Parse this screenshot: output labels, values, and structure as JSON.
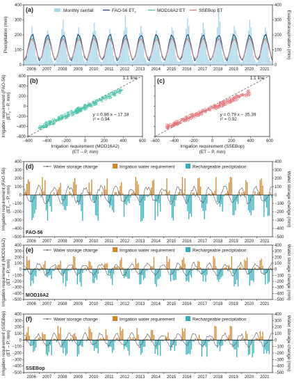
{
  "colors": {
    "rainfall": "#a9d7ea",
    "fao": "#26457a",
    "mod": "#48c4a8",
    "sse": "#e8757a",
    "storage": "#555555",
    "irrigation": "#d4862c",
    "recharge": "#33b0bf",
    "oneone": "#555555"
  },
  "years": [
    "2006",
    "2007",
    "2008",
    "2009",
    "2010",
    "2011",
    "2012",
    "2013",
    "2014",
    "2015",
    "2016",
    "2017",
    "2018",
    "2019",
    "2020",
    "2021"
  ],
  "chart_data": [
    {
      "panel": "(a)",
      "type": "bar+line",
      "ylabel_left": "Precipitation (mm)",
      "ylabel_right": "Evapotranspiration (mm)",
      "ylim_left": [
        0,
        400
      ],
      "ylim_right": [
        0,
        400
      ],
      "yticks": [
        "0",
        "100",
        "200",
        "300",
        "400"
      ],
      "legend": [
        "Monthly rainfall",
        "FAO-56 ET",
        "MOD16A2 ET",
        "SSEBop ET"
      ],
      "legend_sub": "c",
      "xrange": [
        2006,
        2022
      ],
      "seasonal_series": [
        {
          "name": "FAO-56 ET",
          "mean": 115,
          "amplitude": 85
        },
        {
          "name": "MOD16A2 ET",
          "mean": 108,
          "amplitude": 72
        },
        {
          "name": "SSEBop ET",
          "mean": 105,
          "amplitude": 68
        }
      ],
      "rainfall_monthly_mm": [
        20,
        35,
        60,
        90,
        150,
        180,
        260,
        210,
        140,
        60,
        30,
        15,
        25,
        30,
        80,
        110,
        160,
        200,
        230,
        190,
        120,
        50,
        25,
        10,
        15,
        40,
        70,
        120,
        170,
        240,
        300,
        220,
        150,
        70,
        30,
        20,
        20,
        30,
        60,
        100,
        180,
        210,
        250,
        200,
        130,
        60,
        30,
        15,
        25,
        35,
        80,
        110,
        160,
        220,
        280,
        230,
        140,
        70,
        35,
        20,
        15,
        30,
        70,
        100,
        150,
        190,
        240,
        210,
        120,
        60,
        25,
        15,
        20,
        40,
        60,
        120,
        170,
        230,
        330,
        250,
        150,
        60,
        30,
        20,
        25,
        35,
        75,
        110,
        160,
        210,
        260,
        220,
        130,
        50,
        30,
        15,
        15,
        30,
        65,
        105,
        150,
        190,
        230,
        200,
        120,
        55,
        25,
        15,
        20,
        40,
        70,
        120,
        170,
        200,
        250,
        230,
        140,
        60,
        30,
        20,
        25,
        35,
        80,
        110,
        160,
        240,
        310,
        260,
        150,
        60,
        30,
        15,
        15,
        30,
        70,
        100,
        150,
        210,
        280,
        240,
        130,
        70,
        35,
        20,
        20,
        35,
        60,
        110,
        190,
        250,
        370,
        290,
        160,
        70,
        30,
        20,
        25,
        40,
        70,
        120,
        160,
        210,
        260,
        230,
        140,
        60,
        30,
        15,
        15,
        30,
        65,
        100,
        170,
        230,
        300,
        250,
        140,
        60,
        30,
        15,
        20,
        35,
        70,
        110,
        160,
        200,
        250,
        220,
        130,
        50,
        25,
        15
      ]
    },
    {
      "panel": "(b)",
      "type": "scatter",
      "xlabel": "Irrigation requirement (MOD16A2)",
      "xlabel2": "(ET – P, mm)",
      "ylabel": "Irrigation requirement (FAO-56)",
      "ylabel2": "(ET",
      "ylabel2_sub": "c",
      "ylabel2_tail": " – P, mm)",
      "xlim": [
        -600,
        600
      ],
      "ylim": [
        -600,
        600
      ],
      "xticks": [
        "−600",
        "−400",
        "−200",
        "0",
        "200",
        "400",
        "600"
      ],
      "yticks": [
        "−600",
        "−400",
        "−200",
        "0",
        "200",
        "400",
        "600"
      ],
      "oneone_label": "1:1 line",
      "equation": "y = 0.86 x − 17.18",
      "r2": "r² = 0.94",
      "fit": {
        "slope": 0.86,
        "intercept": -17.18
      },
      "xdomain": [
        -480,
        400
      ]
    },
    {
      "panel": "(c)",
      "type": "scatter",
      "xlabel": "Irrigation requirement (SSEBop)",
      "xlabel2": "(ET – P, mm)",
      "xlim": [
        -600,
        600
      ],
      "ylim": [
        -600,
        600
      ],
      "xticks": [
        "−600",
        "−400",
        "−200",
        "0",
        "200",
        "400",
        "600"
      ],
      "yticks": [
        "−600",
        "−400",
        "−200",
        "0",
        "200",
        "400",
        "600"
      ],
      "oneone_label": "1:1 line",
      "equation": "y = 0.79 x − 35.39",
      "r2": "r² = 0.92",
      "fit": {
        "slope": 0.79,
        "intercept": -35.39
      },
      "xdomain": [
        -480,
        400
      ]
    },
    {
      "panel": "(d)",
      "type": "bar+line",
      "method": "FAO-56",
      "ylabel_left": "Irrigation requirement (FAO-56)",
      "ylabel_left2": "(ET",
      "ylabel_left2_sub": "c",
      "ylabel_left2_tail": " – P, mm)",
      "ylabel_right": "Water storage change (mm)",
      "ylim": [
        -500,
        400
      ],
      "yticks": [
        "−500",
        "−400",
        "−300",
        "−200",
        "−100",
        "0",
        "100",
        "200",
        "300",
        "400"
      ],
      "legend": [
        "Water storage change",
        "Irrigation water requirement",
        "Rechargeable precipitation"
      ]
    },
    {
      "panel": "(e)",
      "type": "bar+line",
      "method": "MOD16A2",
      "ylabel_left": "Irrigation requirement (MOD16A2)",
      "ylabel_left2": "(ET – P, mm)",
      "ylabel_right": "Water storage change (mm)",
      "ylim": [
        -500,
        400
      ],
      "yticks": [
        "−500",
        "−400",
        "−300",
        "−200",
        "−100",
        "0",
        "100",
        "200",
        "300",
        "400"
      ],
      "legend": [
        "Water storage change",
        "Irrigation water requirement",
        "Rechargeable precipitation"
      ]
    },
    {
      "panel": "(f)",
      "type": "bar+line",
      "method": "SSEBop",
      "ylabel_left": "Irrigation requirement (SSEBop)",
      "ylabel_left2": "(ET – P, mm)",
      "ylabel_right": "Water storage change (mm)",
      "ylim": [
        -500,
        400
      ],
      "yticks": [
        "−500",
        "−400",
        "−300",
        "−200",
        "−100",
        "0",
        "100",
        "200",
        "300",
        "400"
      ],
      "legend": [
        "Water storage change",
        "Irrigation water requirement",
        "Rechargeable precipitation"
      ]
    }
  ]
}
